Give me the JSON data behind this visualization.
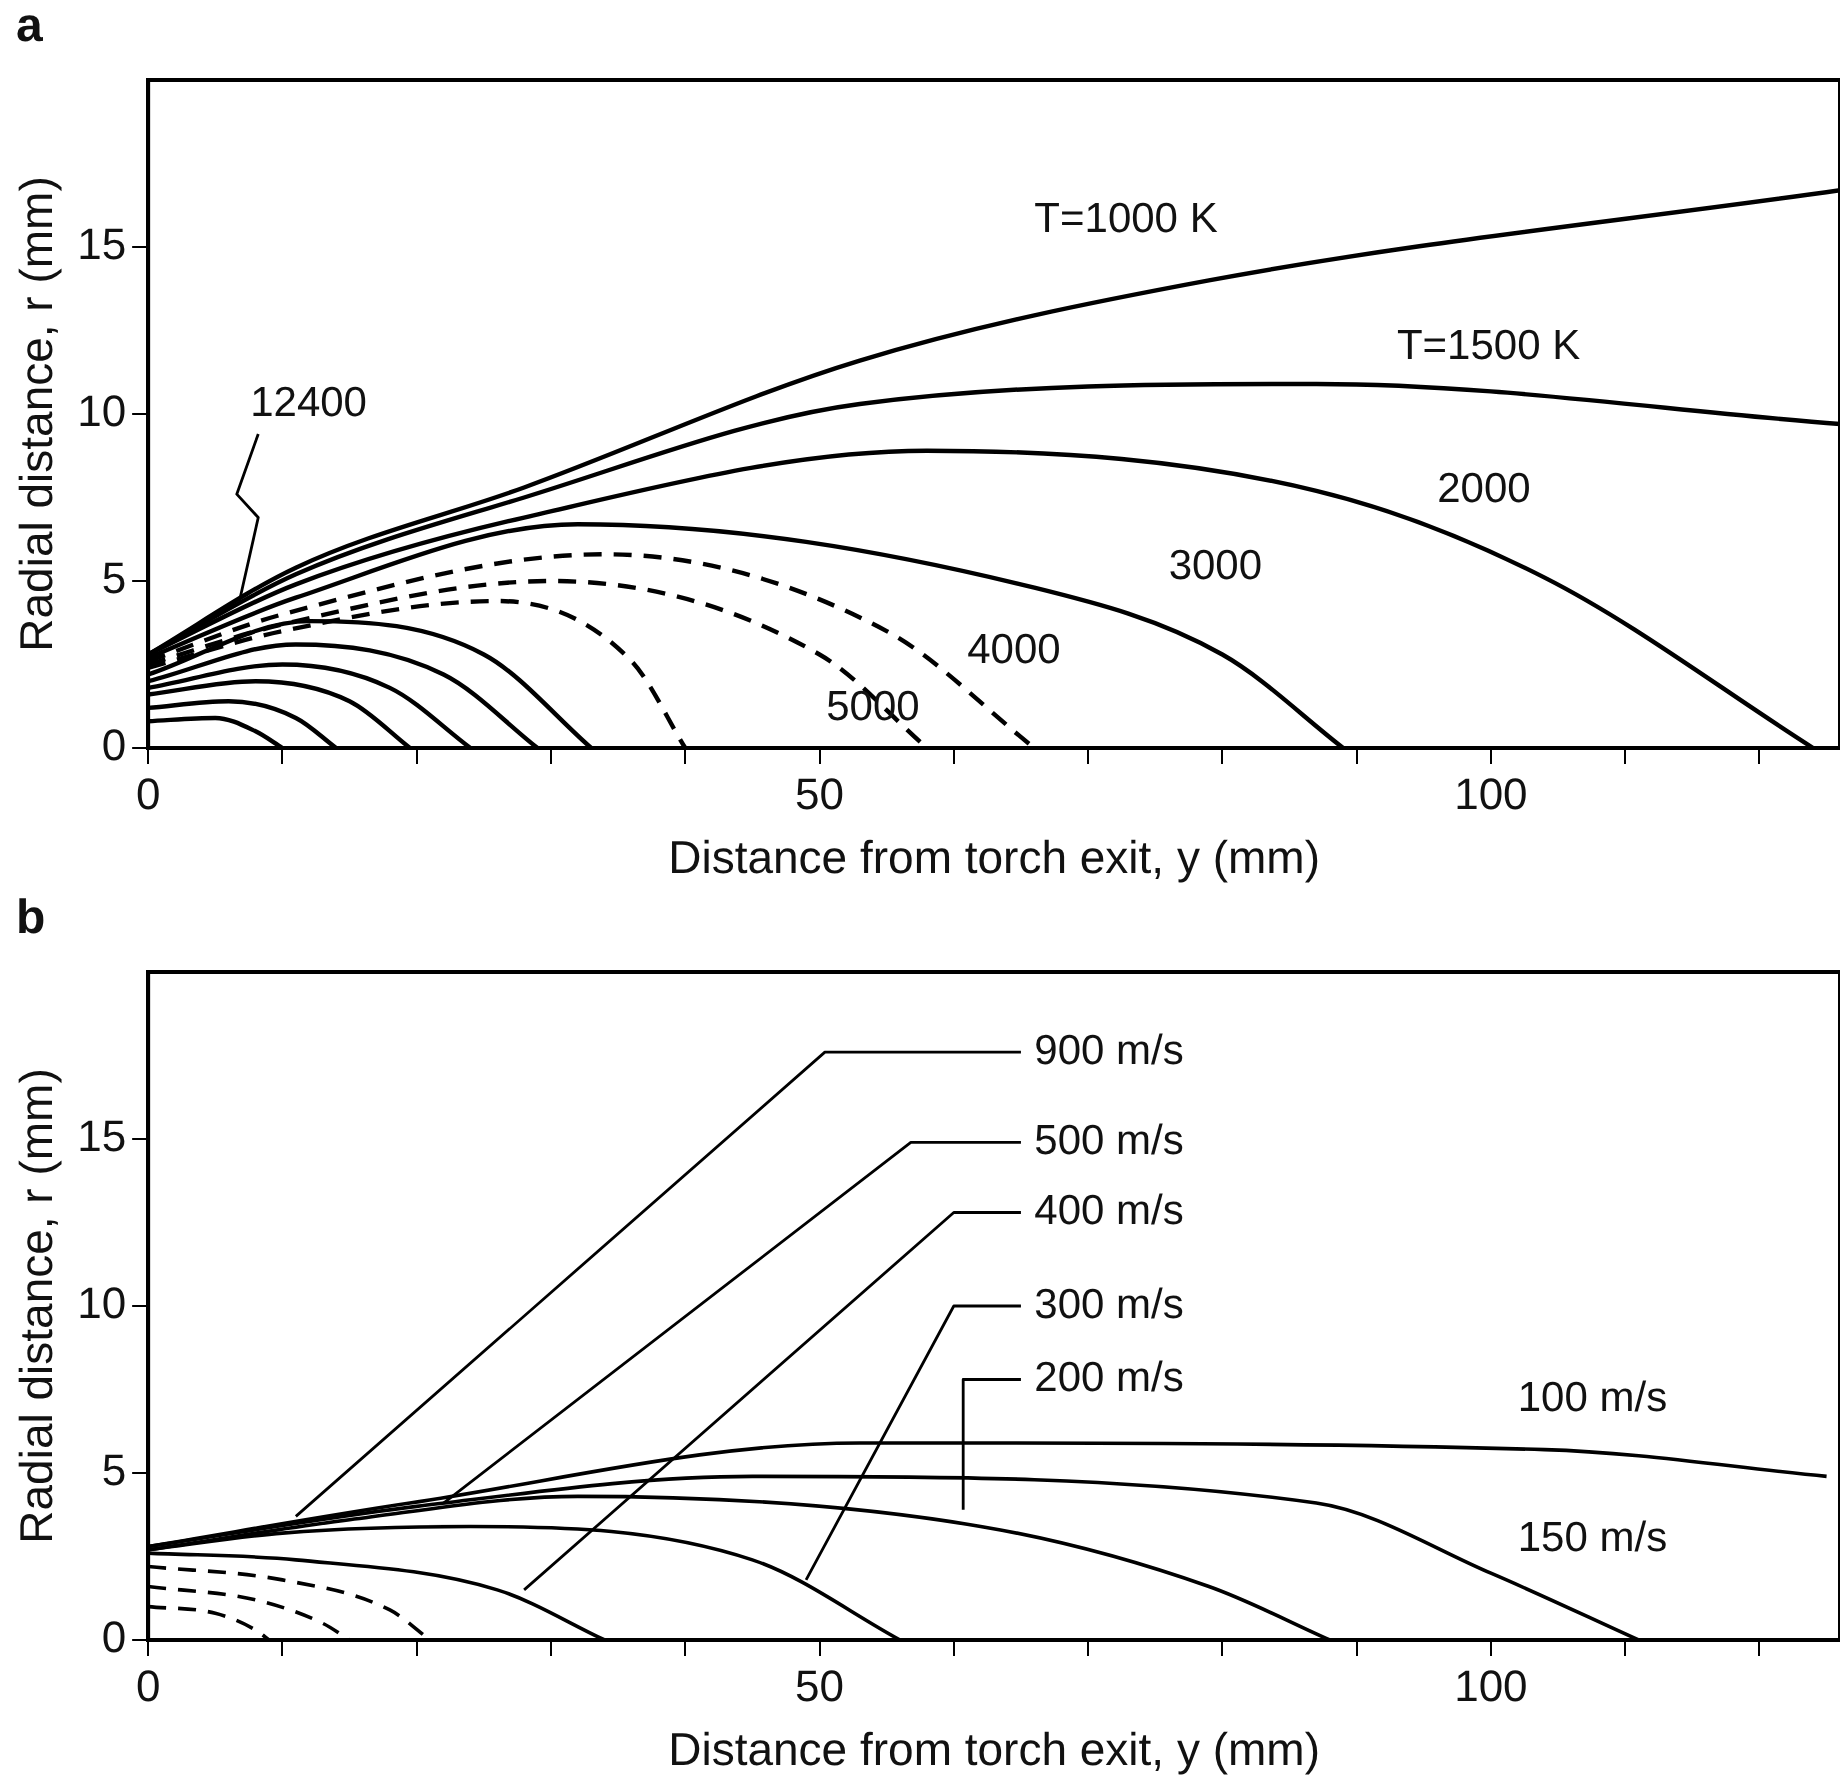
{
  "chart_data": [
    {
      "type": "line",
      "title": "a",
      "xlabel": "Distance from torch exit, y (mm)",
      "ylabel": "Radial distance, r (mm)",
      "xlim": [
        0,
        126
      ],
      "ylim": [
        0,
        20
      ],
      "xticks": [
        0,
        {
          "value": 10,
          "label": null
        },
        {
          "value": 20,
          "label": null
        },
        {
          "value": 30,
          "label": null
        },
        {
          "value": 40,
          "label": null
        },
        50,
        {
          "value": 60,
          "label": null
        },
        {
          "value": 70,
          "label": null
        },
        {
          "value": 80,
          "label": null
        },
        {
          "value": 90,
          "label": null
        },
        100,
        {
          "value": 110,
          "label": null
        },
        {
          "value": 120,
          "label": null
        }
      ],
      "yticks": [
        0,
        5,
        10,
        15
      ],
      "grid": false,
      "legend": false,
      "series": [
        {
          "name": "T=1000 K",
          "color": "#000000",
          "line_style": "solid",
          "x": [
            0,
            11,
            28,
            53,
            79,
            126
          ],
          "values": [
            2.8,
            5.4,
            7.8,
            11.6,
            14,
            16.7
          ]
        },
        {
          "name": "T=1500 K",
          "color": "#000000",
          "line_style": "solid",
          "x": [
            0,
            11,
            28,
            53,
            87,
            126
          ],
          "values": [
            2.8,
            5.2,
            7.5,
            10.3,
            10.9,
            9.7
          ]
        },
        {
          "name": "2000",
          "color": "#000000",
          "line_style": "solid",
          "x": [
            0,
            11,
            28,
            58,
            87,
            104,
            124
          ],
          "values": [
            2.8,
            4.9,
            6.9,
            8.9,
            7.7,
            5.1,
            0
          ]
        },
        {
          "name": "3000",
          "color": "#000000",
          "line_style": "solid",
          "x": [
            0,
            11,
            32,
            66,
            80,
            89
          ],
          "values": [
            2.7,
            4.5,
            6.7,
            4.8,
            2.8,
            0
          ]
        },
        {
          "name": "4000",
          "color": "#000000",
          "line_style": "dashed",
          "x": [
            0,
            10,
            34,
            55,
            66
          ],
          "values": [
            2.6,
            4.0,
            5.8,
            3.5,
            0
          ]
        },
        {
          "name": "5000",
          "color": "#000000",
          "line_style": "dashed",
          "x": [
            0,
            10,
            30,
            50,
            58
          ],
          "values": [
            2.5,
            3.7,
            5.0,
            2.8,
            0
          ]
        },
        {
          "color": "#000000",
          "line_style": "dashed",
          "x": [
            0,
            10,
            26,
            36,
            40
          ],
          "values": [
            2.4,
            3.5,
            4.4,
            2.6,
            0
          ]
        },
        {
          "color": "#000000",
          "line_style": "solid",
          "x": [
            0,
            12,
            25,
            33
          ],
          "values": [
            2.2,
            3.8,
            2.8,
            0
          ]
        },
        {
          "color": "#000000",
          "line_style": "solid",
          "x": [
            0,
            11,
            22,
            29
          ],
          "values": [
            2.0,
            3.1,
            2.2,
            0
          ]
        },
        {
          "color": "#000000",
          "line_style": "solid",
          "x": [
            0,
            10,
            18,
            24
          ],
          "values": [
            1.8,
            2.5,
            1.8,
            0
          ]
        },
        {
          "color": "#000000",
          "line_style": "solid",
          "x": [
            0,
            8,
            15,
            19.5
          ],
          "values": [
            1.6,
            2.0,
            1.4,
            0
          ]
        },
        {
          "color": "#000000",
          "line_style": "solid",
          "x": [
            0,
            6,
            11,
            14
          ],
          "values": [
            1.2,
            1.4,
            0.9,
            0
          ]
        },
        {
          "color": "#000000",
          "line_style": "solid",
          "x": [
            0,
            5,
            8,
            10
          ],
          "values": [
            0.8,
            0.9,
            0.5,
            0
          ]
        }
      ],
      "annotations": [
        {
          "text": "12400",
          "x": 6.8,
          "y": 4.4
        }
      ]
    },
    {
      "type": "line",
      "title": "b",
      "xlabel": "Distance from torch exit, y (mm)",
      "ylabel": "Radial distance, r (mm)",
      "xlim": [
        0,
        126
      ],
      "ylim": [
        0,
        20
      ],
      "xticks": [
        0,
        {
          "value": 10,
          "label": null
        },
        {
          "value": 20,
          "label": null
        },
        {
          "value": 30,
          "label": null
        },
        {
          "value": 40,
          "label": null
        },
        50,
        {
          "value": 60,
          "label": null
        },
        {
          "value": 70,
          "label": null
        },
        {
          "value": 80,
          "label": null
        },
        {
          "value": 90,
          "label": null
        },
        100,
        {
          "value": 110,
          "label": null
        },
        {
          "value": 120,
          "label": null
        }
      ],
      "yticks": [
        0,
        5,
        10,
        15
      ],
      "grid": false,
      "legend": false,
      "series": [
        {
          "name": "100 m/s",
          "color": "#000000",
          "line_style": "solid",
          "x": [
            0,
            19.5,
            53,
            104,
            125
          ],
          "values": [
            2.8,
            4.1,
            5.9,
            5.7,
            4.9
          ]
        },
        {
          "name": "150 m/s",
          "color": "#000000",
          "line_style": "solid",
          "x": [
            0,
            20,
            45,
            87,
            100,
            111
          ],
          "values": [
            2.8,
            4.0,
            4.9,
            4.1,
            2.0,
            0
          ]
        },
        {
          "name": "200 m/s",
          "color": "#000000",
          "line_style": "solid",
          "x": [
            0,
            15,
            32,
            62,
            79,
            88
          ],
          "values": [
            2.7,
            3.6,
            4.3,
            3.4,
            1.6,
            0
          ]
        },
        {
          "name": "300 m/s",
          "color": "#000000",
          "line_style": "solid",
          "x": [
            0,
            10,
            24,
            45,
            56
          ],
          "values": [
            2.7,
            3.2,
            3.4,
            2.4,
            0
          ]
        },
        {
          "name": "400 m/s",
          "color": "#000000",
          "line_style": "solid",
          "x": [
            0,
            11,
            26,
            34
          ],
          "values": [
            2.6,
            2.4,
            1.5,
            0
          ]
        },
        {
          "color": "#000000",
          "line_style": "dashed",
          "x": [
            0,
            10,
            18,
            21
          ],
          "values": [
            2.2,
            1.8,
            0.9,
            0
          ]
        },
        {
          "color": "#000000",
          "line_style": "dashed",
          "x": [
            0,
            8,
            13,
            15
          ],
          "values": [
            1.6,
            1.2,
            0.5,
            0
          ]
        },
        {
          "color": "#000000",
          "line_style": "dashed",
          "x": [
            0,
            5,
            8,
            9
          ],
          "values": [
            1.0,
            0.8,
            0.3,
            0
          ]
        }
      ],
      "annotations": [
        {
          "text": "900 m/s",
          "x": 11,
          "y": 3.7
        },
        {
          "text": "500 m/s",
          "x": 22,
          "y": 4.1
        }
      ]
    }
  ]
}
